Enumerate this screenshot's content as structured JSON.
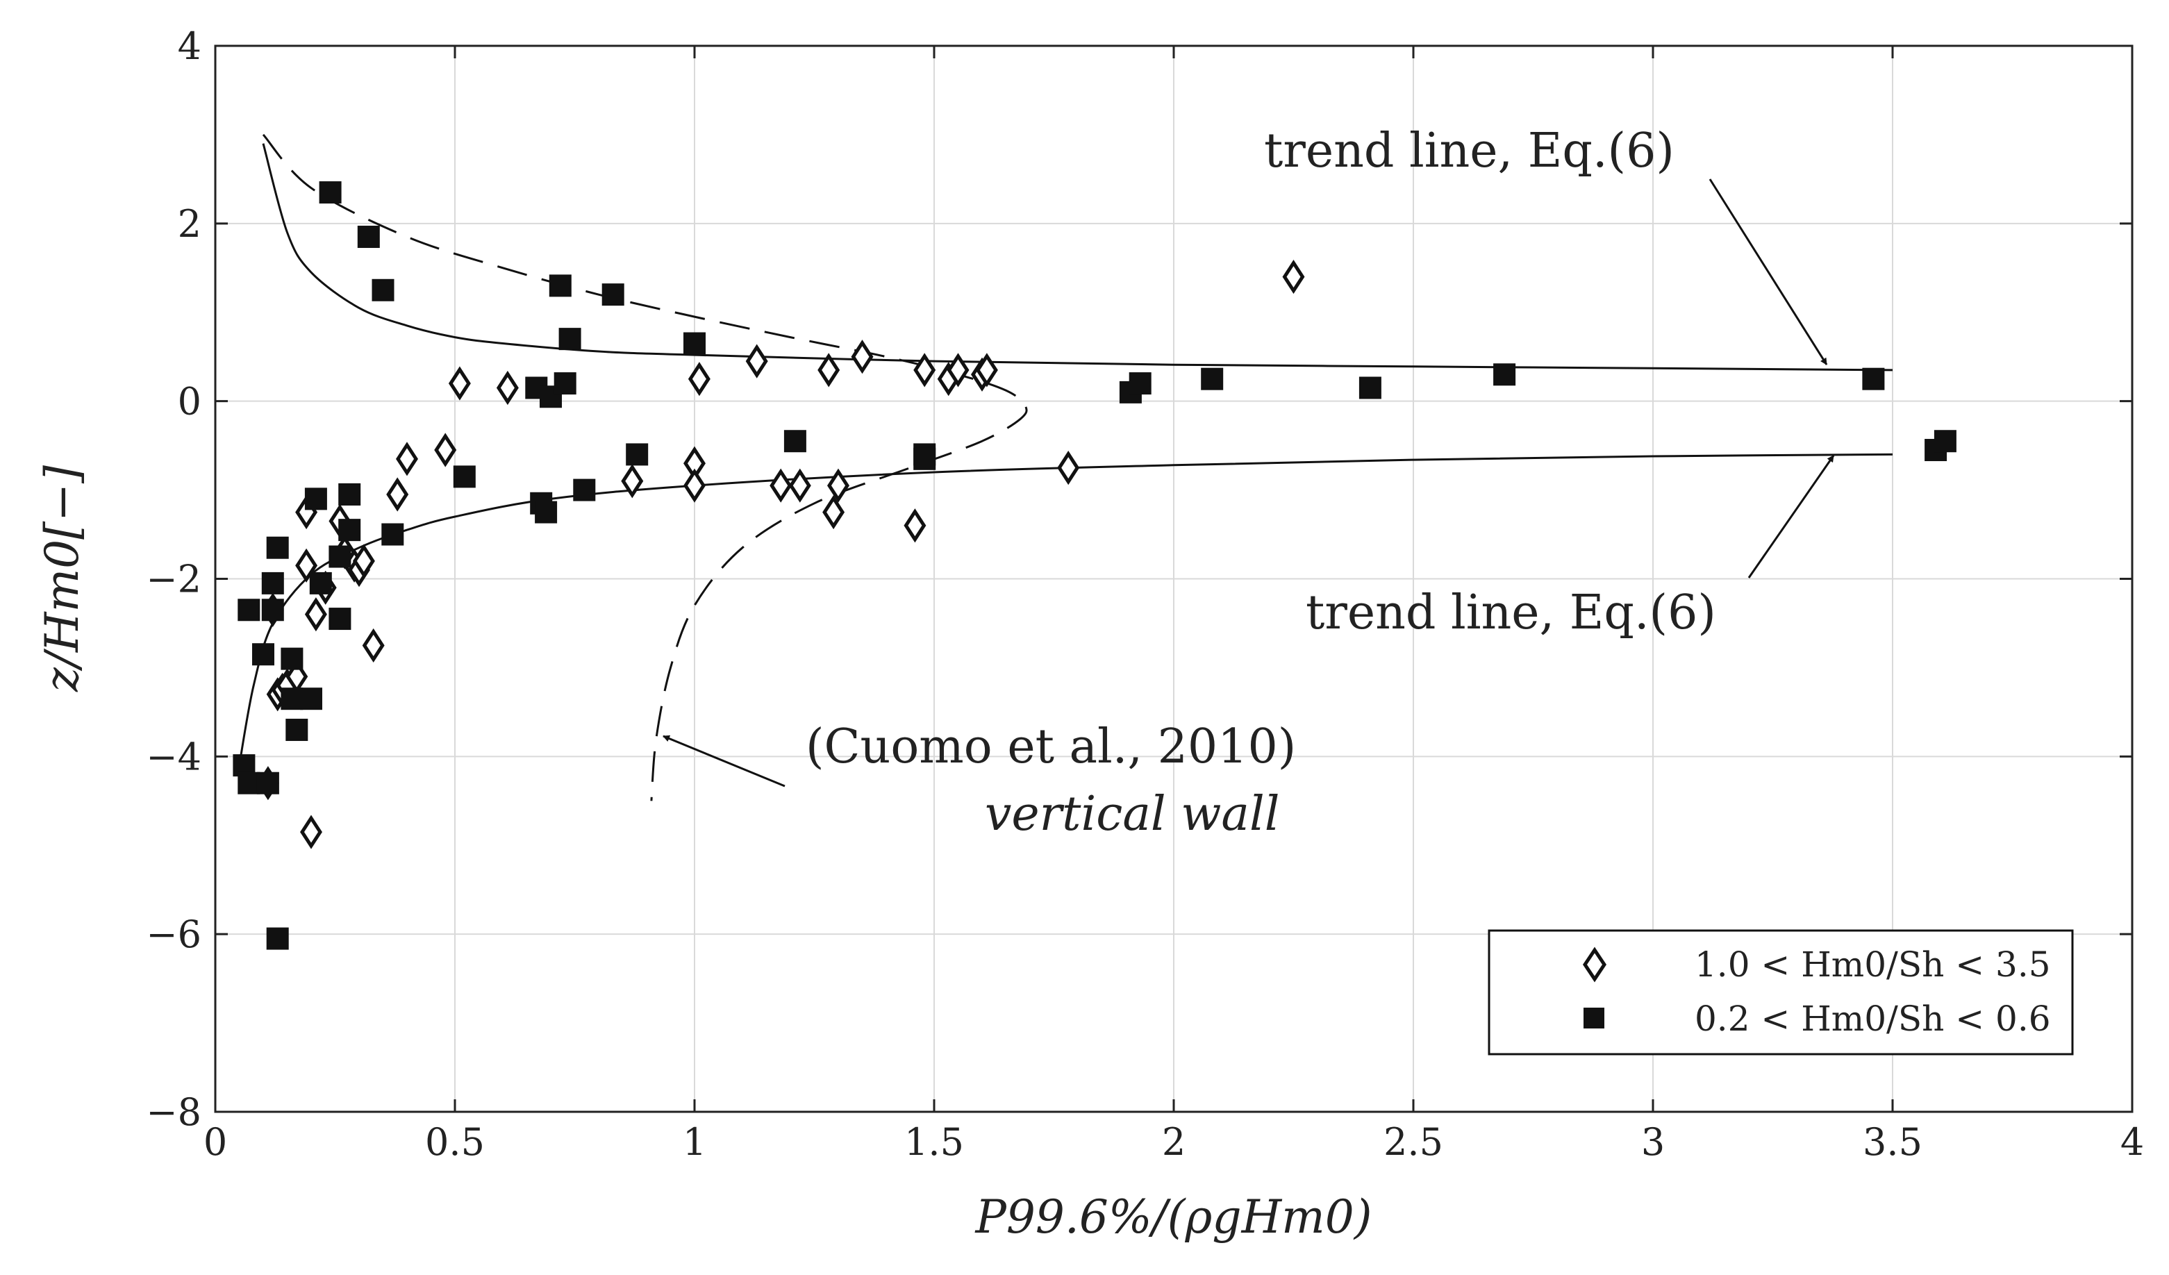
{
  "chart_data": {
    "type": "scatter",
    "title": "",
    "xlabel": "P99.6%/(ρgHm0)",
    "ylabel": "z/Hm0[−]",
    "xlim": [
      0,
      4
    ],
    "ylim": [
      -8,
      4
    ],
    "grid": true,
    "x_ticks": [
      0,
      0.5,
      1,
      1.5,
      2,
      2.5,
      3,
      3.5,
      4
    ],
    "x_tick_labels": [
      "0",
      "0.5",
      "1",
      "1.5",
      "2",
      "2.5",
      "3",
      "3.5",
      "4"
    ],
    "y_ticks": [
      -8,
      -6,
      -4,
      -2,
      0,
      2,
      4
    ],
    "y_tick_labels": [
      "−8",
      "−6",
      "−4",
      "−2",
      "0",
      "2",
      "4"
    ],
    "legend_position": "bottom-right",
    "series": [
      {
        "name": "1.0 < Hm0/Sh < 3.5",
        "marker": "open-diamond",
        "x": [
          0.11,
          0.12,
          0.13,
          0.14,
          0.15,
          0.17,
          0.19,
          0.19,
          0.2,
          0.21,
          0.23,
          0.26,
          0.27,
          0.29,
          0.3,
          0.31,
          0.33,
          0.38,
          0.4,
          0.48,
          0.51,
          0.61,
          0.87,
          1.0,
          1.0,
          1.01,
          1.13,
          1.18,
          1.22,
          1.28,
          1.29,
          1.3,
          1.35,
          1.46,
          1.48,
          1.53,
          1.55,
          1.6,
          1.61,
          1.78,
          2.25
        ],
        "y": [
          -4.3,
          -2.35,
          -3.3,
          -3.25,
          -3.2,
          -3.1,
          -1.25,
          -1.85,
          -4.85,
          -2.4,
          -2.1,
          -1.35,
          -1.7,
          -1.85,
          -1.9,
          -1.8,
          -2.75,
          -1.05,
          -0.65,
          -0.55,
          0.2,
          0.15,
          -0.9,
          -0.7,
          -0.95,
          0.25,
          0.45,
          -0.95,
          -0.95,
          0.35,
          -1.25,
          -0.95,
          0.5,
          -1.4,
          0.35,
          0.25,
          0.35,
          0.3,
          0.35,
          -0.75,
          1.4
        ]
      },
      {
        "name": "0.2 < Hm0/Sh < 0.6",
        "marker": "filled-square",
        "x": [
          0.06,
          0.07,
          0.07,
          0.1,
          0.11,
          0.12,
          0.12,
          0.13,
          0.13,
          0.16,
          0.16,
          0.17,
          0.2,
          0.21,
          0.22,
          0.24,
          0.26,
          0.26,
          0.28,
          0.28,
          0.32,
          0.35,
          0.37,
          0.52,
          0.67,
          0.68,
          0.69,
          0.7,
          0.72,
          0.73,
          0.74,
          0.77,
          0.83,
          0.88,
          1.0,
          1.21,
          1.48,
          1.48,
          1.91,
          1.93,
          2.08,
          2.41,
          2.69,
          3.46,
          3.59,
          3.61
        ],
        "y": [
          -4.1,
          -4.3,
          -2.35,
          -2.85,
          -4.3,
          -2.05,
          -2.35,
          -1.65,
          -6.05,
          -2.9,
          -3.35,
          -3.7,
          -3.35,
          -1.1,
          -2.05,
          2.35,
          -1.75,
          -2.45,
          -1.05,
          -1.45,
          1.85,
          1.25,
          -1.5,
          -0.85,
          0.15,
          -1.15,
          -1.25,
          0.05,
          1.3,
          0.2,
          0.7,
          -1.0,
          1.2,
          -0.6,
          0.65,
          -0.45,
          -0.6,
          -0.65,
          0.1,
          0.2,
          0.25,
          0.15,
          0.3,
          0.25,
          -0.55,
          -0.45
        ]
      }
    ],
    "curves": [
      {
        "name": "trend line, Eq.(6) upper",
        "style": "solid",
        "x": [
          0.1,
          0.15,
          0.2,
          0.3,
          0.4,
          0.5,
          0.6,
          0.8,
          1.0,
          1.5,
          2.0,
          2.5,
          3.0,
          3.5
        ],
        "y": [
          2.9,
          1.9,
          1.45,
          1.05,
          0.85,
          0.72,
          0.65,
          0.56,
          0.52,
          0.45,
          0.41,
          0.39,
          0.37,
          0.35
        ]
      },
      {
        "name": "trend line, Eq.(6) lower",
        "style": "solid",
        "x": [
          0.05,
          0.08,
          0.12,
          0.2,
          0.3,
          0.4,
          0.5,
          0.7,
          1.0,
          1.5,
          2.0,
          2.5,
          3.0,
          3.5
        ],
        "y": [
          -4.1,
          -3.2,
          -2.5,
          -1.95,
          -1.65,
          -1.45,
          -1.3,
          -1.1,
          -0.95,
          -0.8,
          -0.72,
          -0.66,
          -0.62,
          -0.6
        ]
      },
      {
        "name": "Cuomo et al., 2010 vertical wall",
        "style": "dashed",
        "x": [
          0.1,
          0.2,
          0.4,
          0.6,
          0.8,
          1.0,
          1.2,
          1.4,
          1.55,
          1.65,
          1.69,
          1.68,
          1.6,
          1.45,
          1.25,
          1.1,
          1.0,
          0.95,
          0.92,
          0.91
        ],
        "y": [
          3.0,
          2.4,
          1.85,
          1.5,
          1.2,
          0.95,
          0.72,
          0.5,
          0.3,
          0.12,
          -0.05,
          -0.2,
          -0.45,
          -0.75,
          -1.15,
          -1.65,
          -2.3,
          -3.0,
          -3.8,
          -4.5
        ]
      }
    ],
    "annotations": {
      "upper_trend": "trend line, Eq.(6)",
      "lower_trend": "trend line, Eq.(6)",
      "cuomo_line1": "(Cuomo et al., 2010)",
      "cuomo_line2": "vertical wall"
    }
  }
}
